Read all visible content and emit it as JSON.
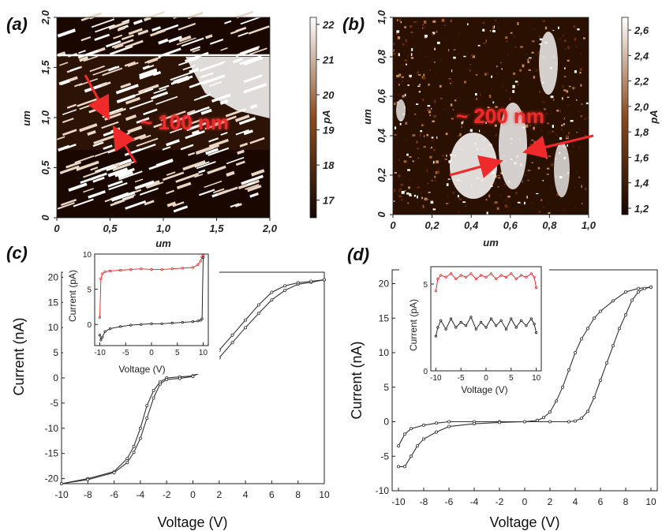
{
  "panels": {
    "a": {
      "label": "(a)"
    },
    "b": {
      "label": "(b)"
    },
    "c": {
      "label": "(c)"
    },
    "d": {
      "label": "(d)"
    }
  },
  "chart_data": [
    {
      "panel": "a",
      "type": "heatmap",
      "xlabel": "um",
      "ylabel": "um",
      "x_ticks": [
        "0",
        "0,5",
        "1,0",
        "1,5",
        "2,0"
      ],
      "y_ticks": [
        "0",
        "0,5",
        "1,0",
        "1,5",
        "2,0"
      ],
      "xlim": [
        0,
        2.0
      ],
      "ylim": [
        0,
        2.0
      ],
      "colorbar": {
        "label": "pA",
        "ticks": [
          "17",
          "18",
          "19",
          "20",
          "21",
          "22"
        ],
        "range": [
          16.5,
          22.2
        ],
        "colors": [
          "#140600",
          "#8c4b1f",
          "#ffffff"
        ]
      },
      "annotation": "~ 100 nm"
    },
    {
      "panel": "b",
      "type": "heatmap",
      "xlabel": "um",
      "ylabel": "um",
      "x_ticks": [
        "0",
        "0,2",
        "0,4",
        "0,6",
        "0,8",
        "1,0"
      ],
      "y_ticks": [
        "0",
        "0,2",
        "0,4",
        "0,6",
        "0,8",
        "1,0"
      ],
      "xlim": [
        0,
        1.0
      ],
      "ylim": [
        0,
        1.0
      ],
      "colorbar": {
        "label": "pA",
        "ticks": [
          "1,2",
          "1,4",
          "1,6",
          "1,8",
          "2,0",
          "2,2",
          "2,4",
          "2,6"
        ],
        "range": [
          1.15,
          2.7
        ],
        "colors": [
          "#140600",
          "#8c4b1f",
          "#ffffff"
        ]
      },
      "annotation": "~ 200 nm"
    },
    {
      "panel": "c",
      "type": "line",
      "xlabel": "Voltage (V)",
      "ylabel": "Current (nA)",
      "xlim": [
        -10,
        10
      ],
      "ylim": [
        -21,
        21
      ],
      "x_ticks": [
        -10,
        -8,
        -6,
        -4,
        -2,
        0,
        2,
        4,
        6,
        8,
        10
      ],
      "y_ticks": [
        -20,
        -15,
        -10,
        -5,
        0,
        5,
        10,
        15,
        20
      ],
      "series": [
        {
          "x": [
            -10,
            -8,
            -6,
            -5,
            -4.5,
            -4,
            -3.5,
            -3,
            -2.5,
            -2,
            -1,
            0,
            1,
            2,
            3,
            4,
            5,
            6,
            7,
            8,
            9,
            10
          ],
          "y": [
            -21,
            -20,
            -18.6,
            -16,
            -13.6,
            -10,
            -5.5,
            -2.5,
            -0.8,
            0,
            0.2,
            0.4,
            1.4,
            4,
            7,
            10,
            12.8,
            15.5,
            17.4,
            18.6,
            19,
            19.5
          ],
          "color": "#333333"
        },
        {
          "x": [
            10,
            9,
            8,
            7,
            6,
            5,
            4,
            3,
            2,
            1,
            0,
            -1,
            -2,
            -2.5,
            -3,
            -3.5,
            -4,
            -4.5,
            -5,
            -6,
            -8,
            -10
          ],
          "y": [
            19.5,
            19.2,
            18.9,
            18.3,
            17,
            14.5,
            11.5,
            8.5,
            5.5,
            2.5,
            0.3,
            -0.1,
            -0.3,
            -1.2,
            -4,
            -8,
            -12,
            -14.8,
            -16.8,
            -18.8,
            -20.2,
            -21
          ],
          "color": "#333333"
        }
      ],
      "inset": {
        "xlabel": "Voltage (V)",
        "ylabel": "Current (pA)",
        "xlim": [
          -11,
          11
        ],
        "ylim": [
          -3,
          10
        ],
        "x_ticks": [
          -10,
          -5,
          0,
          5,
          10
        ],
        "y_ticks": [
          0,
          5,
          10
        ],
        "series": [
          {
            "x": [
              -10,
              -9.8,
              -9.5,
              -9,
              -8,
              -6,
              -4,
              -2,
              0,
              2,
              4,
              6,
              8,
              9,
              9.5,
              9.8,
              10
            ],
            "y": [
              1,
              6.5,
              7.2,
              7.5,
              7.6,
              7.7,
              7.8,
              7.9,
              7.8,
              7.8,
              7.9,
              8,
              8.1,
              8.5,
              9,
              9.6,
              9.8
            ],
            "color": "#e02020"
          },
          {
            "x": [
              -10,
              -9.8,
              -9.5,
              -9,
              -8,
              -6,
              -4,
              -2,
              0,
              2,
              4,
              6,
              8,
              9,
              9.5,
              9.8,
              10
            ],
            "y": [
              -1.5,
              -2.2,
              -1.8,
              -1,
              -0.6,
              -0.3,
              -0.1,
              0,
              0.1,
              0.1,
              0.2,
              0.3,
              0.4,
              0.5,
              0.6,
              0.8,
              9.5
            ],
            "color": "#111111"
          }
        ]
      }
    },
    {
      "panel": "d",
      "type": "line",
      "xlabel": "Voltage (V)",
      "ylabel": "Current (nA)",
      "xlim": [
        -10.5,
        10.5
      ],
      "ylim": [
        -10,
        22
      ],
      "x_ticks": [
        -10,
        -8,
        -6,
        -4,
        -2,
        0,
        2,
        4,
        6,
        8,
        10
      ],
      "y_ticks": [
        -10,
        -5,
        0,
        5,
        10,
        15,
        20
      ],
      "series": [
        {
          "x": [
            -10,
            -9.5,
            -9,
            -8,
            -7,
            -6,
            -4,
            -2,
            0,
            1,
            1.5,
            2,
            2.5,
            3,
            3.5,
            4,
            4.5,
            5,
            5.5,
            6,
            7,
            8,
            9,
            10
          ],
          "y": [
            -3.5,
            -1.8,
            -1,
            -0.5,
            -0.2,
            0,
            0,
            0,
            0,
            0.2,
            0.6,
            1.4,
            3,
            5,
            7.5,
            10,
            12,
            13.5,
            15,
            16,
            17.5,
            18.8,
            19.3,
            19.5
          ],
          "color": "#333333"
        },
        {
          "x": [
            10,
            9.5,
            9,
            8.5,
            8,
            7.5,
            7,
            6.5,
            6,
            5.5,
            5,
            4.5,
            4,
            3.5,
            2,
            0,
            -2,
            -4,
            -6,
            -7,
            -8,
            -8.5,
            -9,
            -9.5,
            -10
          ],
          "y": [
            19.5,
            19.3,
            18.8,
            17.6,
            15.5,
            13.5,
            11,
            8.5,
            6,
            3.5,
            1.5,
            0.5,
            0.1,
            0,
            0,
            0,
            -0.1,
            -0.3,
            -0.7,
            -1.5,
            -2.5,
            -3.5,
            -5,
            -6.5,
            -6.5
          ],
          "color": "#333333"
        }
      ],
      "inset": {
        "xlabel": "Voltage (V)",
        "ylabel": "Current (pA)",
        "xlim": [
          -11,
          11
        ],
        "ylim": [
          0,
          6
        ],
        "x_ticks": [
          -10,
          -5,
          0,
          5,
          10
        ],
        "y_ticks": [
          0,
          5
        ],
        "series": [
          {
            "x": [
              -10,
              -9.6,
              -9,
              -8,
              -7,
              -6,
              -5,
              -4,
              -3,
              -2,
              -1,
              0,
              1,
              2,
              3,
              4,
              5,
              6,
              7,
              8,
              9,
              9.6,
              10
            ],
            "y": [
              4.6,
              5.3,
              5.5,
              5.4,
              5.6,
              5.3,
              5.5,
              5.4,
              5.6,
              5.3,
              5.5,
              5.4,
              5.6,
              5.3,
              5.5,
              5.4,
              5.6,
              5.3,
              5.5,
              5.4,
              5.6,
              5.4,
              4.8
            ],
            "color": "#e02020"
          },
          {
            "x": [
              -10,
              -9.6,
              -9,
              -8,
              -7,
              -6,
              -5,
              -4,
              -3,
              -2,
              -1,
              0,
              1,
              2,
              3,
              4,
              5,
              6,
              7,
              8,
              9,
              9.6,
              10
            ],
            "y": [
              2,
              2.5,
              2.9,
              2.4,
              3,
              2.5,
              2.8,
              2.6,
              3.1,
              2.4,
              2.8,
              2.5,
              3,
              2.6,
              2.9,
              2.4,
              3,
              2.5,
              2.9,
              2.6,
              3,
              2.7,
              2.2
            ],
            "color": "#111111"
          }
        ]
      }
    }
  ]
}
